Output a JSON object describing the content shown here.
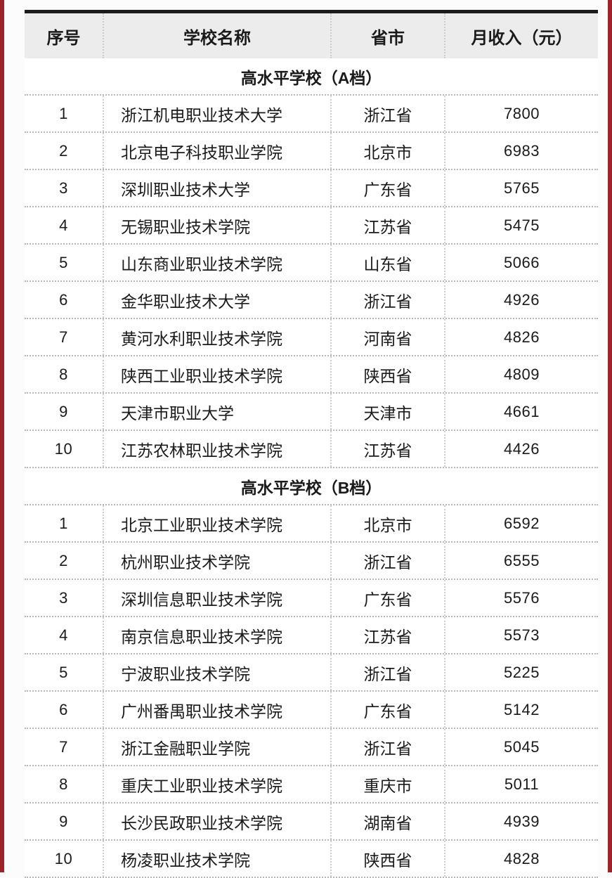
{
  "page": {
    "left_accent_color": "#9c2428",
    "right_accent_color": "#9c2428",
    "top_bar_color": "#1b1b1b",
    "header_bg": "#ececec"
  },
  "table": {
    "headers": [
      "序号",
      "学校名称",
      "省市",
      "月收入（元）"
    ],
    "sections": [
      {
        "title": "高水平学校（A档）",
        "rows": [
          {
            "no": "1",
            "school": "浙江机电职业技术大学",
            "province": "浙江省",
            "income": "7800"
          },
          {
            "no": "2",
            "school": "北京电子科技职业学院",
            "province": "北京市",
            "income": "6983"
          },
          {
            "no": "3",
            "school": "深圳职业技术大学",
            "province": "广东省",
            "income": "5765"
          },
          {
            "no": "4",
            "school": "无锡职业技术学院",
            "province": "江苏省",
            "income": "5475"
          },
          {
            "no": "5",
            "school": "山东商业职业技术学院",
            "province": "山东省",
            "income": "5066"
          },
          {
            "no": "6",
            "school": "金华职业技术大学",
            "province": "浙江省",
            "income": "4926"
          },
          {
            "no": "7",
            "school": "黄河水利职业技术学院",
            "province": "河南省",
            "income": "4826"
          },
          {
            "no": "8",
            "school": "陕西工业职业技术学院",
            "province": "陕西省",
            "income": "4809"
          },
          {
            "no": "9",
            "school": "天津市职业大学",
            "province": "天津市",
            "income": "4661"
          },
          {
            "no": "10",
            "school": "江苏农林职业技术学院",
            "province": "江苏省",
            "income": "4426"
          }
        ]
      },
      {
        "title": "高水平学校（B档）",
        "rows": [
          {
            "no": "1",
            "school": "北京工业职业技术学院",
            "province": "北京市",
            "income": "6592"
          },
          {
            "no": "2",
            "school": "杭州职业技术学院",
            "province": "浙江省",
            "income": "6555"
          },
          {
            "no": "3",
            "school": "深圳信息职业技术学院",
            "province": "广东省",
            "income": "5576"
          },
          {
            "no": "4",
            "school": "南京信息职业技术学院",
            "province": "江苏省",
            "income": "5573"
          },
          {
            "no": "5",
            "school": "宁波职业技术学院",
            "province": "浙江省",
            "income": "5225"
          },
          {
            "no": "6",
            "school": "广州番禺职业技术学院",
            "province": "广东省",
            "income": "5142"
          },
          {
            "no": "7",
            "school": "浙江金融职业学院",
            "province": "浙江省",
            "income": "5045"
          },
          {
            "no": "8",
            "school": "重庆工业职业技术学院",
            "province": "重庆市",
            "income": "5011"
          },
          {
            "no": "9",
            "school": "长沙民政职业技术学院",
            "province": "湖南省",
            "income": "4939"
          },
          {
            "no": "10",
            "school": "杨凌职业技术学院",
            "province": "陕西省",
            "income": "4828"
          }
        ]
      }
    ]
  }
}
